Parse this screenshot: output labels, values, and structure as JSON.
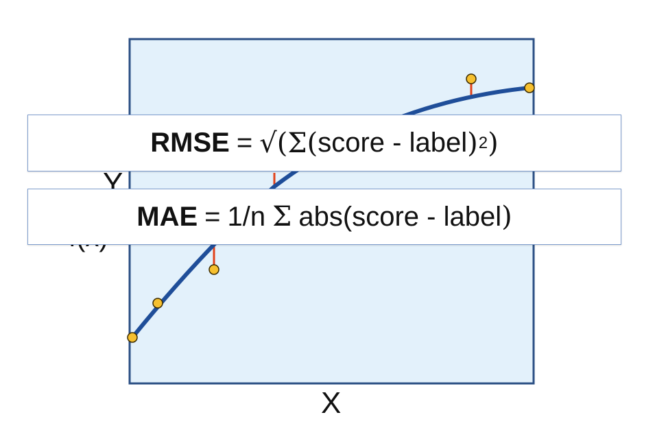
{
  "diagram": {
    "x_axis_label": "X",
    "y_axis_label": "Y",
    "y_axis_sublabel": "f(x)",
    "colors": {
      "plot_fill": "#e3f1fb",
      "plot_border": "#2b4f84",
      "curve": "#1f4e99",
      "point_fill": "#f6c02f",
      "point_stroke": "#3a2a00",
      "residual": "#e2421a"
    }
  },
  "formulas": {
    "rmse": {
      "name": "RMSE",
      "equals": "=",
      "sqrt": "√",
      "open_paren": "(",
      "sigma": "Σ",
      "inner_open": "(",
      "inner_text": "score - label",
      "inner_close": ")",
      "exponent": "2",
      "close_paren": ")"
    },
    "mae": {
      "name": "MAE",
      "equals": "=",
      "factor": "1/n",
      "sigma": "Σ",
      "body": "abs(score - label",
      "close_paren": ")"
    }
  }
}
